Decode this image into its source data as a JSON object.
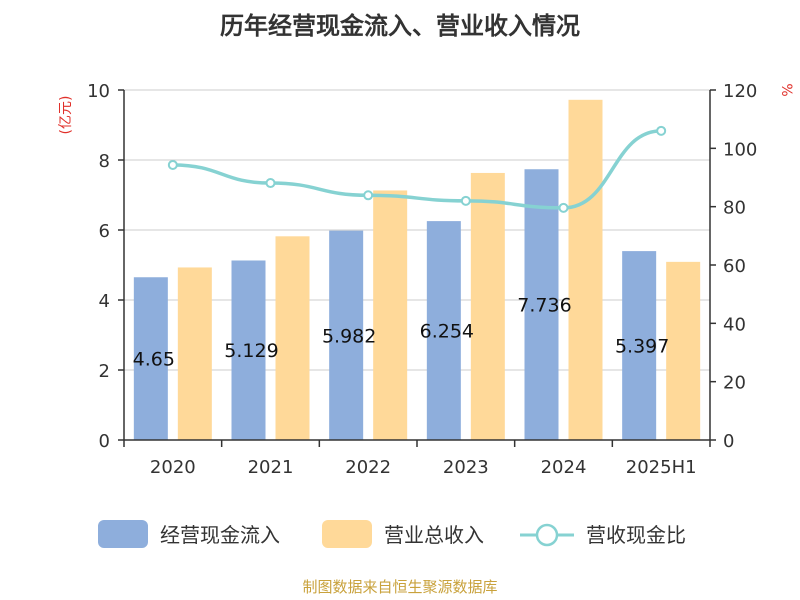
{
  "chart_data": {
    "type": "bar",
    "title": "历年经营现金流入、营业收入情况",
    "categories": [
      "2020",
      "2021",
      "2022",
      "2023",
      "2024",
      "2025H1"
    ],
    "series": [
      {
        "name": "经营现金流入",
        "type": "bar",
        "axis": "left",
        "color": "#8eaedc",
        "values": [
          4.65,
          5.129,
          5.982,
          6.254,
          7.736,
          5.397
        ],
        "labels": [
          "4.65",
          "5.129",
          "5.982",
          "6.254",
          "7.736",
          "5.397"
        ]
      },
      {
        "name": "营业总收入",
        "type": "bar",
        "axis": "left",
        "color": "#ffd999",
        "values": [
          4.93,
          5.82,
          7.13,
          7.63,
          9.72,
          5.09
        ]
      },
      {
        "name": "营收现金比",
        "type": "line",
        "axis": "right",
        "color": "#86d2d2",
        "values": [
          94.3,
          88.1,
          83.9,
          82.0,
          79.6,
          106.0
        ]
      }
    ],
    "y_left": {
      "unit": "(亿元)",
      "min": 0,
      "max": 10,
      "ticks": [
        "0",
        "2",
        "4",
        "6",
        "8",
        "10"
      ]
    },
    "y_right": {
      "unit": "%",
      "min": 0,
      "max": 120,
      "ticks": [
        "0",
        "20",
        "40",
        "60",
        "80",
        "100",
        "120"
      ]
    },
    "grid": true,
    "legend_position": "bottom",
    "colors": {
      "unit_label": "#e0302a",
      "grid": "#cccccc",
      "axis": "#333333",
      "source": "#c9a23c"
    }
  },
  "source": "制图数据来自恒生聚源数据库"
}
